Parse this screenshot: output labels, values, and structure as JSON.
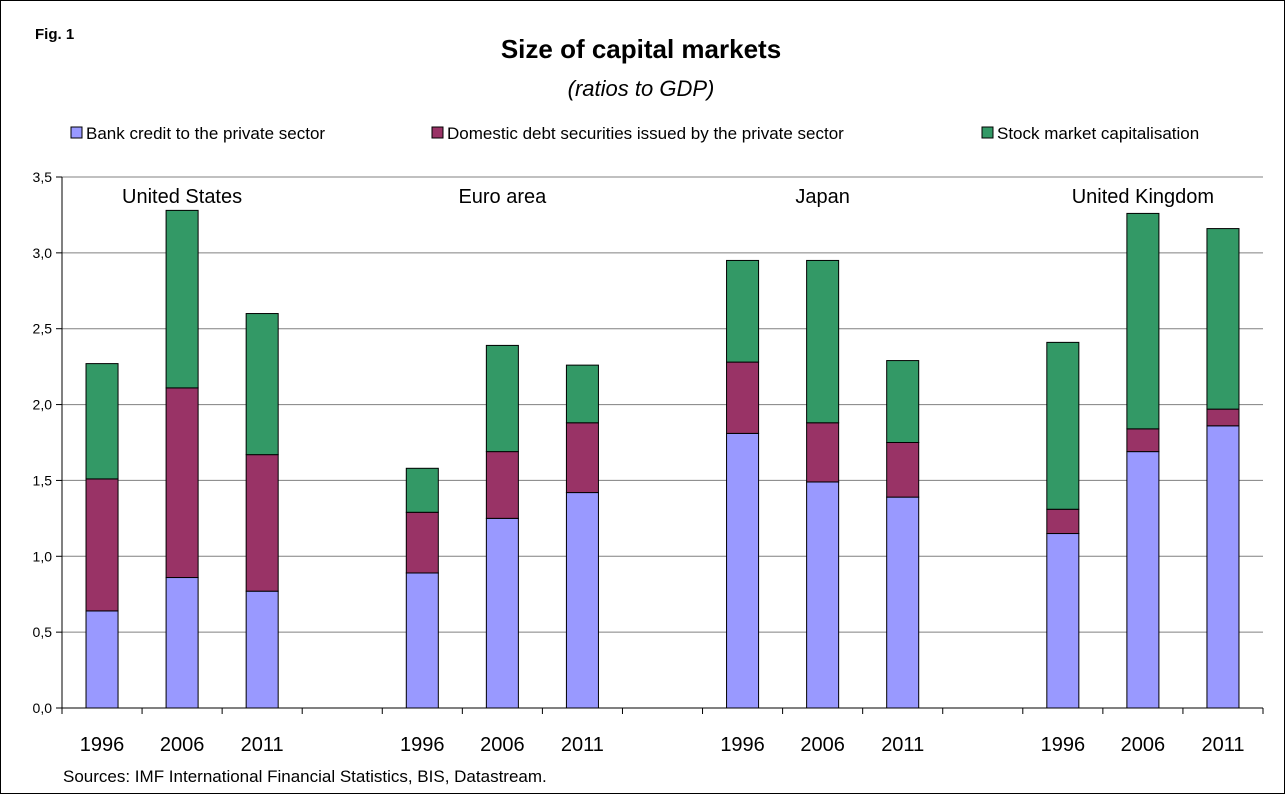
{
  "figure_label": "Fig. 1",
  "chart_data": {
    "type": "bar",
    "stacked": true,
    "title": "Size of capital markets",
    "subtitle": "(ratios to GDP)",
    "xlabel": "",
    "ylabel": "",
    "ylim": [
      0,
      3.5
    ],
    "yticks": [
      "0,0",
      "0,5",
      "1,0",
      "1,5",
      "2,0",
      "2,5",
      "3,0",
      "3,5"
    ],
    "grid": true,
    "legend_position": "top",
    "groups": [
      "United States",
      "Euro area",
      "Japan",
      "United Kingdom"
    ],
    "categories": [
      "1996",
      "2006",
      "2011",
      "1996",
      "2006",
      "2011",
      "1996",
      "2006",
      "2011",
      "1996",
      "2006",
      "2011"
    ],
    "series": [
      {
        "name": "Bank credit to the private sector",
        "color": "#9999ff",
        "values": [
          0.64,
          0.86,
          0.77,
          0.89,
          1.25,
          1.42,
          1.81,
          1.49,
          1.39,
          1.15,
          1.69,
          1.86
        ]
      },
      {
        "name": "Domestic debt securities issued by the private sector",
        "color": "#993366",
        "values": [
          0.87,
          1.25,
          0.9,
          0.4,
          0.44,
          0.46,
          0.47,
          0.39,
          0.36,
          0.16,
          0.15,
          0.11
        ]
      },
      {
        "name": "Stock market capitalisation",
        "color": "#339966",
        "values": [
          0.76,
          1.17,
          0.93,
          0.29,
          0.7,
          0.38,
          0.67,
          1.07,
          0.54,
          1.1,
          1.42,
          1.19
        ]
      }
    ]
  },
  "sources": "Sources: IMF International Financial Statistics, BIS, Datastream."
}
